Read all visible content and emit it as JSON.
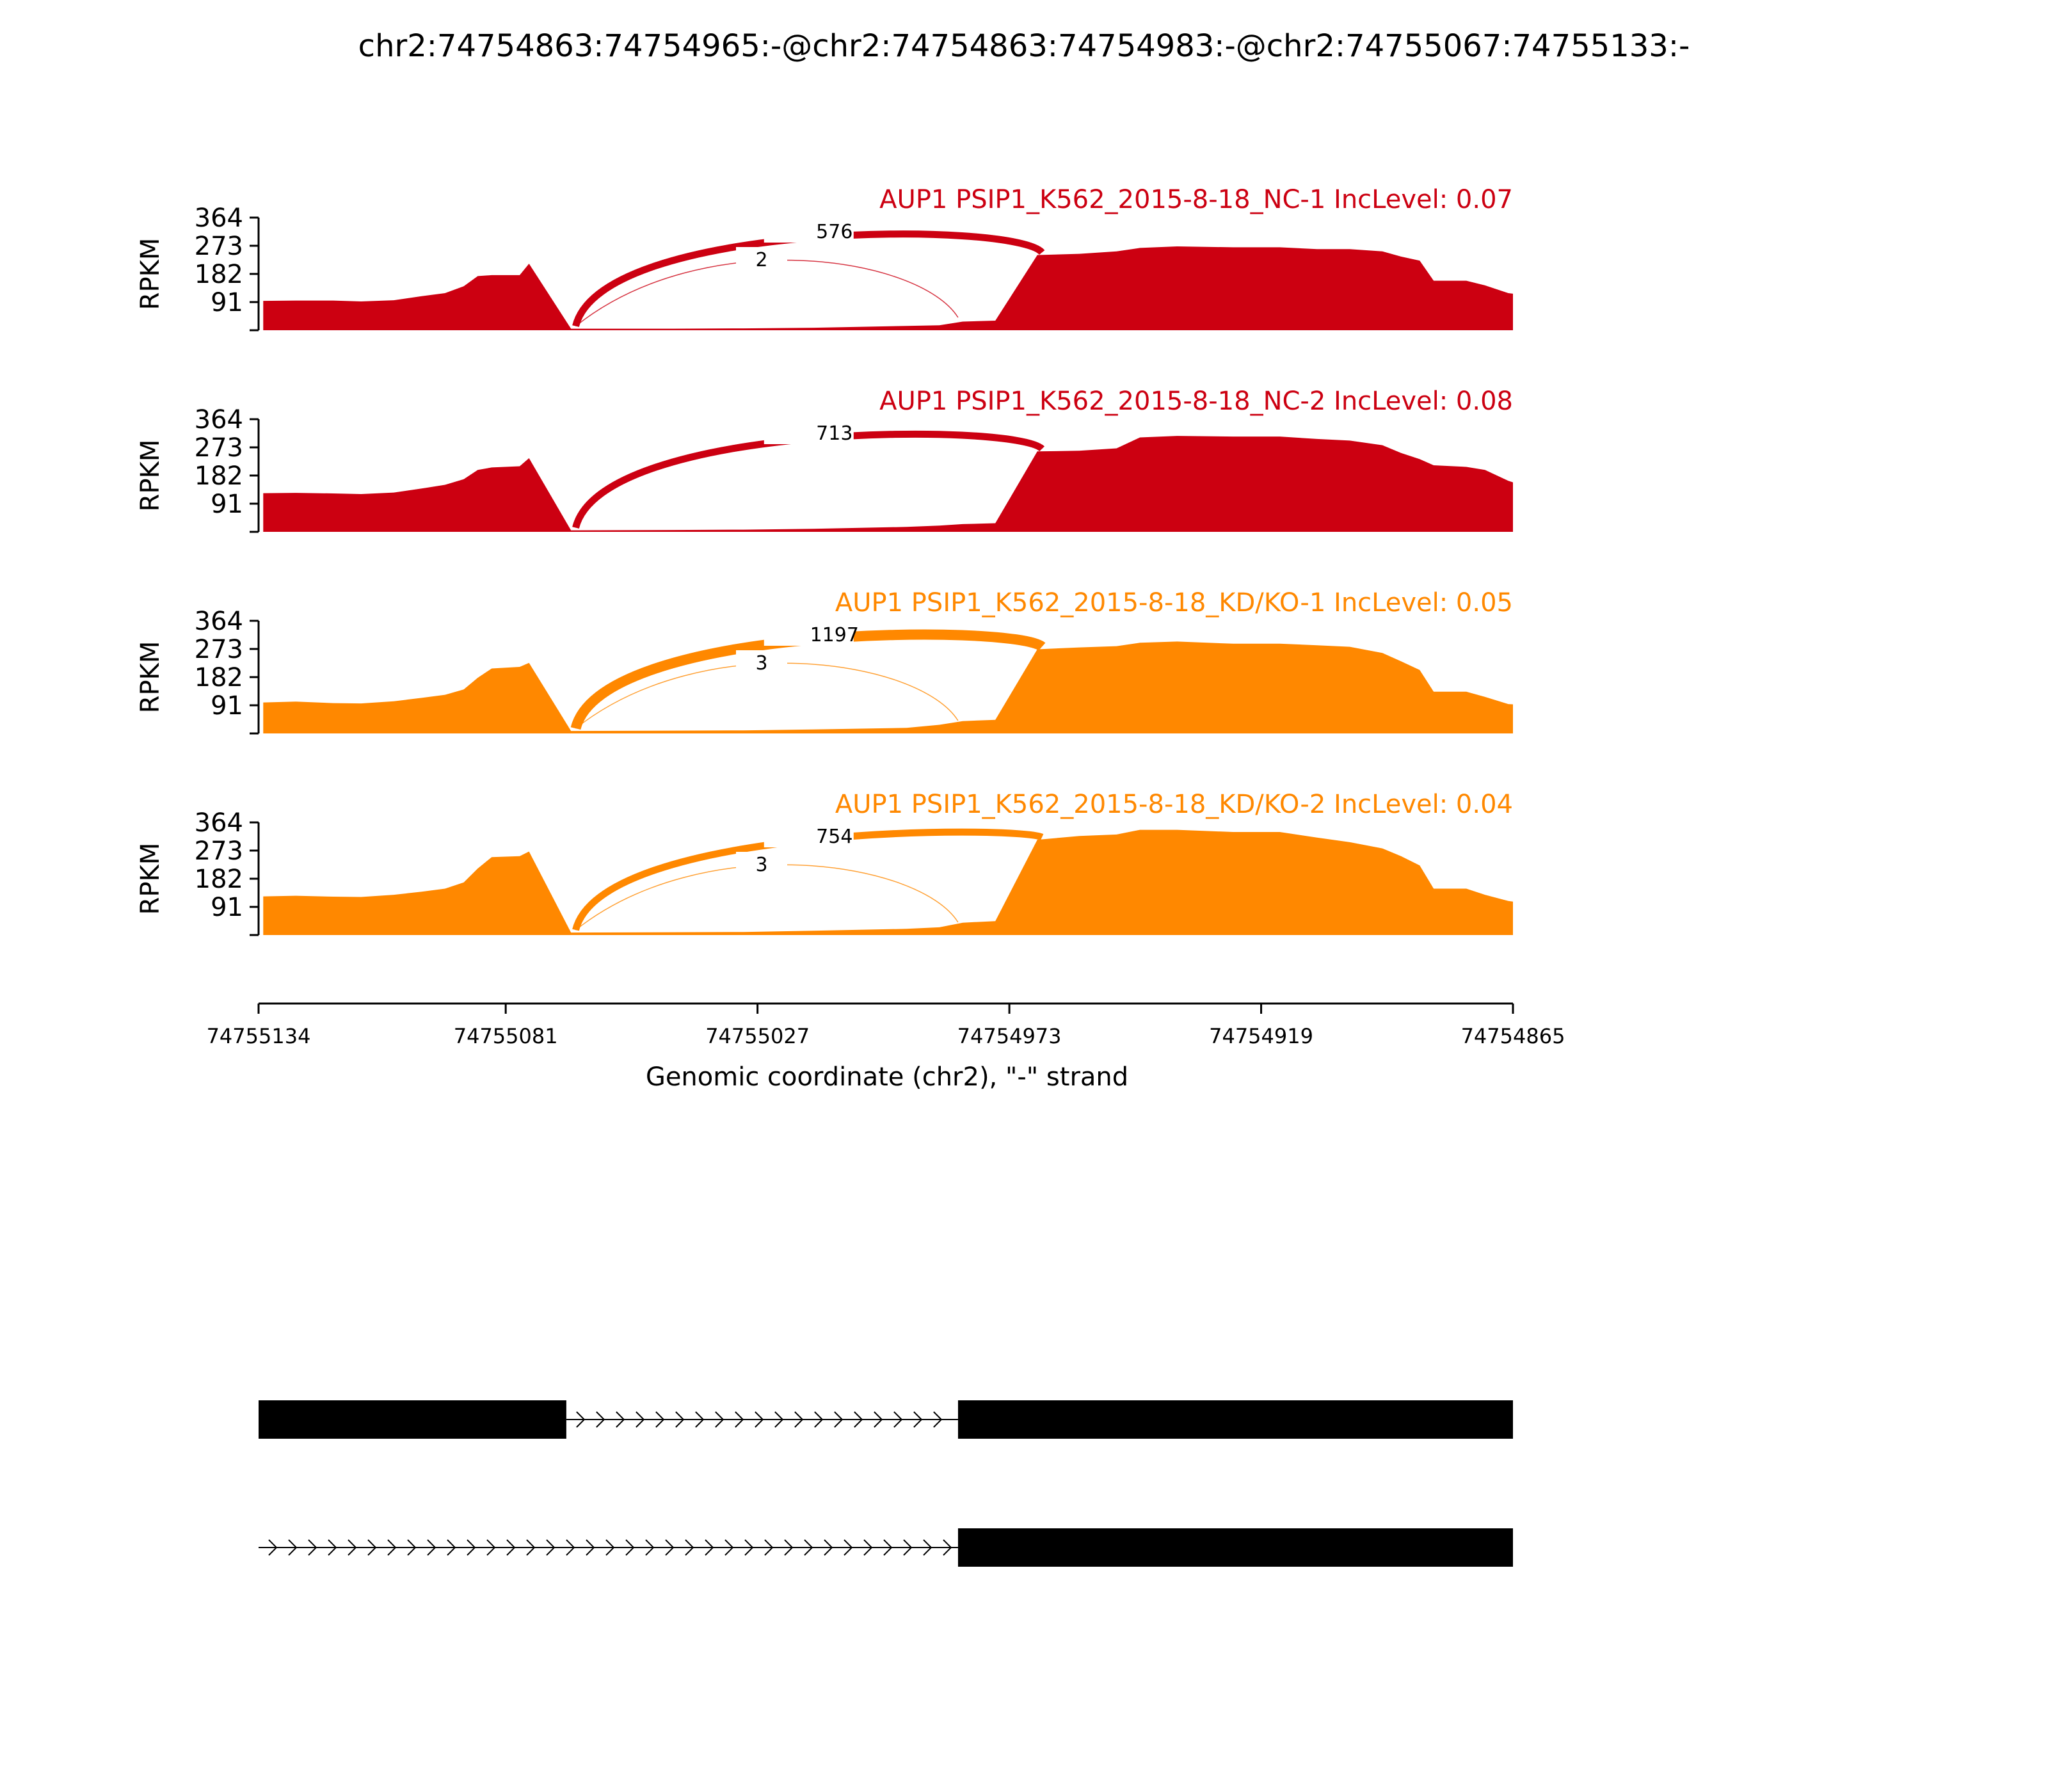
{
  "title": "chr2:74754863:74754965:-@chr2:74754863:74754983:-@chr2:74755067:74755133:-",
  "chart_data": {
    "type": "area",
    "subtype": "sashimi",
    "title": "chr2:74754863:74754965:-@chr2:74754863:74754983:-@chr2:74755067:74755133:-",
    "xlabel": "Genomic coordinate (chr2), \"-\" strand",
    "ylabel": "RPKM",
    "xlim": [
      74755134,
      74754865
    ],
    "x_reversed": true,
    "x_ticks": [
      74755134,
      74755081,
      74755027,
      74754973,
      74754919,
      74754865
    ],
    "ylim": [
      0,
      364
    ],
    "y_ticks": [
      91,
      182,
      273,
      364
    ],
    "grid": false,
    "tracks": [
      {
        "name": "AUP1 PSIP1_K562_2015-8-18_NC-1 IncLevel: 0.07",
        "color": "#CC0011",
        "coverage": [
          [
            74755133,
            95
          ],
          [
            74755126,
            96
          ],
          [
            74755118,
            96
          ],
          [
            74755112,
            93
          ],
          [
            74755105,
            97
          ],
          [
            74755099,
            110
          ],
          [
            74755094,
            120
          ],
          [
            74755090,
            142
          ],
          [
            74755087,
            175
          ],
          [
            74755084,
            178
          ],
          [
            74755078,
            178
          ],
          [
            74755076,
            215
          ],
          [
            74755067,
            5
          ],
          [
            74755045,
            5
          ],
          [
            74755030,
            6
          ],
          [
            74755015,
            8
          ],
          [
            74754995,
            14
          ],
          [
            74754988,
            16
          ],
          [
            74754983,
            28
          ],
          [
            74754976,
            31
          ],
          [
            74754967,
            243
          ],
          [
            74754958,
            247
          ],
          [
            74754950,
            255
          ],
          [
            74754945,
            266
          ],
          [
            74754937,
            271
          ],
          [
            74754925,
            268
          ],
          [
            74754915,
            268
          ],
          [
            74754907,
            262
          ],
          [
            74754900,
            262
          ],
          [
            74754893,
            255
          ],
          [
            74754889,
            238
          ],
          [
            74754885,
            225
          ],
          [
            74754882,
            160
          ],
          [
            74754875,
            160
          ],
          [
            74754871,
            145
          ],
          [
            74754866,
            120
          ],
          [
            74754865,
            118
          ]
        ],
        "junctions": [
          {
            "from": 74755066,
            "to": 74754966,
            "count": 576
          },
          {
            "from": 74755066,
            "to": 74754984,
            "count": 2
          }
        ]
      },
      {
        "name": "AUP1 PSIP1_K562_2015-8-18_NC-2 IncLevel: 0.08",
        "color": "#CC0011",
        "coverage": [
          [
            74755133,
            125
          ],
          [
            74755126,
            126
          ],
          [
            74755118,
            124
          ],
          [
            74755112,
            122
          ],
          [
            74755105,
            127
          ],
          [
            74755099,
            140
          ],
          [
            74755094,
            152
          ],
          [
            74755090,
            170
          ],
          [
            74755087,
            200
          ],
          [
            74755084,
            208
          ],
          [
            74755078,
            212
          ],
          [
            74755076,
            238
          ],
          [
            74755067,
            5
          ],
          [
            74755045,
            6
          ],
          [
            74755030,
            7
          ],
          [
            74755015,
            10
          ],
          [
            74754995,
            16
          ],
          [
            74754988,
            20
          ],
          [
            74754983,
            25
          ],
          [
            74754976,
            28
          ],
          [
            74754967,
            260
          ],
          [
            74754958,
            262
          ],
          [
            74754950,
            270
          ],
          [
            74754945,
            305
          ],
          [
            74754937,
            310
          ],
          [
            74754925,
            308
          ],
          [
            74754915,
            308
          ],
          [
            74754907,
            300
          ],
          [
            74754900,
            295
          ],
          [
            74754893,
            280
          ],
          [
            74754889,
            255
          ],
          [
            74754885,
            235
          ],
          [
            74754882,
            215
          ],
          [
            74754875,
            210
          ],
          [
            74754871,
            200
          ],
          [
            74754866,
            165
          ],
          [
            74754865,
            160
          ]
        ],
        "junctions": [
          {
            "from": 74755066,
            "to": 74754966,
            "count": 713
          }
        ]
      },
      {
        "name": "AUP1 PSIP1_K562_2015-8-18_KD/KO-1 IncLevel: 0.05",
        "color": "#FF8800",
        "coverage": [
          [
            74755133,
            100
          ],
          [
            74755126,
            103
          ],
          [
            74755118,
            98
          ],
          [
            74755112,
            97
          ],
          [
            74755105,
            104
          ],
          [
            74755099,
            115
          ],
          [
            74755094,
            125
          ],
          [
            74755090,
            142
          ],
          [
            74755087,
            180
          ],
          [
            74755084,
            210
          ],
          [
            74755078,
            215
          ],
          [
            74755076,
            228
          ],
          [
            74755067,
            8
          ],
          [
            74755045,
            9
          ],
          [
            74755030,
            10
          ],
          [
            74755015,
            13
          ],
          [
            74754995,
            18
          ],
          [
            74754988,
            28
          ],
          [
            74754983,
            40
          ],
          [
            74754976,
            44
          ],
          [
            74754967,
            272
          ],
          [
            74754958,
            278
          ],
          [
            74754950,
            282
          ],
          [
            74754945,
            293
          ],
          [
            74754937,
            297
          ],
          [
            74754925,
            290
          ],
          [
            74754915,
            290
          ],
          [
            74754907,
            285
          ],
          [
            74754900,
            280
          ],
          [
            74754893,
            260
          ],
          [
            74754889,
            233
          ],
          [
            74754885,
            205
          ],
          [
            74754882,
            135
          ],
          [
            74754875,
            135
          ],
          [
            74754871,
            118
          ],
          [
            74754866,
            95
          ],
          [
            74754865,
            94
          ]
        ],
        "junctions": [
          {
            "from": 74755066,
            "to": 74754966,
            "count": 1197
          },
          {
            "from": 74755066,
            "to": 74754984,
            "count": 3
          }
        ]
      },
      {
        "name": "AUP1 PSIP1_K562_2015-8-18_KD/KO-2 IncLevel: 0.04",
        "color": "#FF8800",
        "coverage": [
          [
            74755133,
            125
          ],
          [
            74755126,
            127
          ],
          [
            74755118,
            124
          ],
          [
            74755112,
            123
          ],
          [
            74755105,
            130
          ],
          [
            74755099,
            140
          ],
          [
            74755094,
            150
          ],
          [
            74755090,
            170
          ],
          [
            74755087,
            215
          ],
          [
            74755084,
            252
          ],
          [
            74755078,
            255
          ],
          [
            74755076,
            270
          ],
          [
            74755067,
            8
          ],
          [
            74755045,
            9
          ],
          [
            74755030,
            10
          ],
          [
            74755015,
            14
          ],
          [
            74754995,
            20
          ],
          [
            74754988,
            25
          ],
          [
            74754983,
            40
          ],
          [
            74754976,
            45
          ],
          [
            74754967,
            308
          ],
          [
            74754958,
            320
          ],
          [
            74754950,
            325
          ],
          [
            74754945,
            340
          ],
          [
            74754937,
            340
          ],
          [
            74754925,
            333
          ],
          [
            74754915,
            333
          ],
          [
            74754907,
            315
          ],
          [
            74754900,
            300
          ],
          [
            74754893,
            280
          ],
          [
            74754889,
            255
          ],
          [
            74754885,
            225
          ],
          [
            74754882,
            150
          ],
          [
            74754875,
            150
          ],
          [
            74754871,
            130
          ],
          [
            74754866,
            110
          ],
          [
            74754865,
            108
          ]
        ],
        "junctions": [
          {
            "from": 74755066,
            "to": 74754966,
            "count": 754
          },
          {
            "from": 74755066,
            "to": 74754984,
            "count": 3
          }
        ]
      }
    ],
    "isoforms": [
      {
        "exons": [
          [
            74755134,
            74755068
          ],
          [
            74754984,
            74754865
          ]
        ]
      },
      {
        "exons": [
          [
            74754984,
            74754865
          ]
        ]
      }
    ]
  }
}
